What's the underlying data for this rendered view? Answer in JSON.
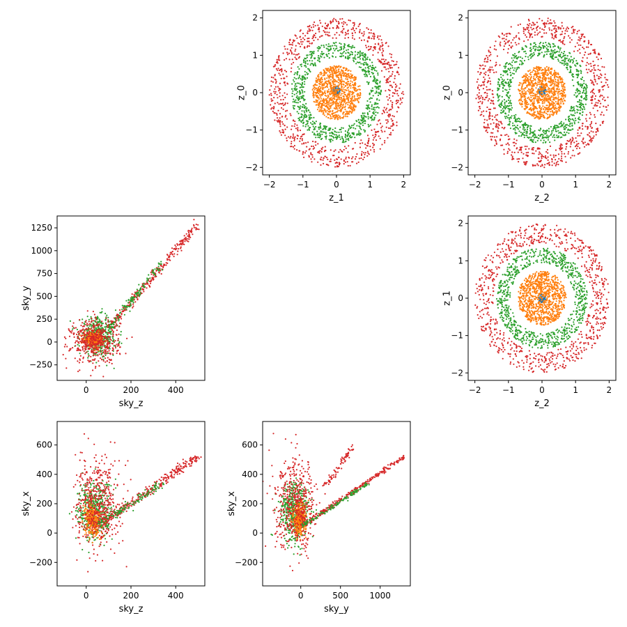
{
  "figure": {
    "series_colors": [
      "#1f77b4",
      "#ff7f0e",
      "#2ca02c",
      "#d62728"
    ]
  },
  "chart_data": [
    {
      "type": "scatter",
      "panel": "row1-col2",
      "xlabel": "z_1",
      "ylabel": "z_0",
      "xlim": [
        -2.2,
        2.2
      ],
      "ylim": [
        -2.2,
        2.2
      ],
      "xticks": [
        -2,
        -1,
        0,
        1,
        2
      ],
      "yticks": [
        -2,
        -1,
        0,
        1,
        2
      ],
      "grid": false,
      "series": [
        {
          "color": "#1f77b4",
          "shape": "ring",
          "count": 60,
          "center": [
            0.0,
            0.05
          ],
          "radius": [
            0.0,
            0.12
          ],
          "values": []
        },
        {
          "color": "#ff7f0e",
          "shape": "ring",
          "count": 900,
          "center": [
            0.0,
            0.0
          ],
          "radius": [
            0.0,
            0.72
          ],
          "values": []
        },
        {
          "color": "#2ca02c",
          "shape": "ring",
          "count": 800,
          "center": [
            0.0,
            0.0
          ],
          "radius": [
            0.95,
            1.35
          ],
          "values": []
        },
        {
          "color": "#d62728",
          "shape": "ring",
          "count": 800,
          "center": [
            0.0,
            0.0
          ],
          "radius": [
            1.45,
            2.0
          ],
          "values": []
        }
      ]
    },
    {
      "type": "scatter",
      "panel": "row1-col3",
      "xlabel": "z_2",
      "ylabel": "z_0",
      "xlim": [
        -2.2,
        2.2
      ],
      "ylim": [
        -2.2,
        2.2
      ],
      "xticks": [
        -2,
        -1,
        0,
        1,
        2
      ],
      "yticks": [
        -2,
        -1,
        0,
        1,
        2
      ],
      "grid": false,
      "series": [
        {
          "color": "#1f77b4",
          "shape": "ring",
          "count": 60,
          "center": [
            0.0,
            0.05
          ],
          "radius": [
            0.0,
            0.12
          ],
          "values": []
        },
        {
          "color": "#ff7f0e",
          "shape": "ring",
          "count": 900,
          "center": [
            0.0,
            0.0
          ],
          "radius": [
            0.0,
            0.72
          ],
          "values": []
        },
        {
          "color": "#2ca02c",
          "shape": "ring",
          "count": 800,
          "center": [
            0.0,
            0.0
          ],
          "radius": [
            0.95,
            1.35
          ],
          "values": []
        },
        {
          "color": "#d62728",
          "shape": "ring",
          "count": 800,
          "center": [
            0.0,
            0.0
          ],
          "radius": [
            1.45,
            2.0
          ],
          "values": []
        }
      ]
    },
    {
      "type": "scatter",
      "panel": "row2-col1",
      "xlabel": "sky_z",
      "ylabel": "sky_y",
      "xlim": [
        -130,
        530
      ],
      "ylim": [
        -420,
        1380
      ],
      "xticks": [
        0,
        200,
        400
      ],
      "yticks": [
        -250,
        0,
        250,
        500,
        750,
        1000,
        1250
      ],
      "grid": false,
      "series": [
        {
          "color": "#2ca02c",
          "shape": "blob",
          "count": 450,
          "center": [
            55,
            60
          ],
          "spread": [
            70,
            170
          ],
          "values": []
        },
        {
          "color": "#ff7f0e",
          "shape": "blob",
          "count": 350,
          "center": [
            35,
            30
          ],
          "spread": [
            35,
            60
          ],
          "values": []
        },
        {
          "color": "#d62728",
          "shape": "blob",
          "count": 500,
          "center": [
            40,
            10
          ],
          "spread": [
            90,
            200
          ],
          "values": []
        },
        {
          "color": "#d62728",
          "shape": "line",
          "count": 300,
          "from": [
            100,
            150
          ],
          "to": [
            500,
            1300
          ],
          "jitter": [
            8,
            25
          ],
          "values": []
        },
        {
          "color": "#2ca02c",
          "shape": "line",
          "count": 120,
          "from": [
            100,
            150
          ],
          "to": [
            340,
            860
          ],
          "jitter": [
            8,
            25
          ],
          "values": []
        }
      ]
    },
    {
      "type": "scatter",
      "panel": "row2-col3",
      "xlabel": "z_2",
      "ylabel": "z_1",
      "xlim": [
        -2.2,
        2.2
      ],
      "ylim": [
        -2.2,
        2.2
      ],
      "xticks": [
        -2,
        -1,
        0,
        1,
        2
      ],
      "yticks": [
        -2,
        -1,
        0,
        1,
        2
      ],
      "grid": false,
      "series": [
        {
          "color": "#1f77b4",
          "shape": "ring",
          "count": 60,
          "center": [
            0.0,
            0.0
          ],
          "radius": [
            0.0,
            0.12
          ],
          "values": []
        },
        {
          "color": "#ff7f0e",
          "shape": "ring",
          "count": 900,
          "center": [
            0.0,
            0.0
          ],
          "radius": [
            0.0,
            0.72
          ],
          "values": []
        },
        {
          "color": "#2ca02c",
          "shape": "ring",
          "count": 800,
          "center": [
            0.0,
            0.0
          ],
          "radius": [
            0.95,
            1.35
          ],
          "values": []
        },
        {
          "color": "#d62728",
          "shape": "ring",
          "count": 800,
          "center": [
            0.0,
            0.0
          ],
          "radius": [
            1.45,
            2.0
          ],
          "values": []
        }
      ]
    },
    {
      "type": "scatter",
      "panel": "row3-col1",
      "xlabel": "sky_z",
      "ylabel": "sky_x",
      "xlim": [
        -130,
        530
      ],
      "ylim": [
        -360,
        760
      ],
      "xticks": [
        0,
        200,
        400
      ],
      "yticks": [
        -200,
        0,
        200,
        400,
        600
      ],
      "grid": false,
      "series": [
        {
          "color": "#2ca02c",
          "shape": "blob",
          "count": 450,
          "center": [
            40,
            150
          ],
          "spread": [
            65,
            170
          ],
          "values": []
        },
        {
          "color": "#ff7f0e",
          "shape": "blob",
          "count": 350,
          "center": [
            30,
            90
          ],
          "spread": [
            30,
            90
          ],
          "values": []
        },
        {
          "color": "#d62728",
          "shape": "blob",
          "count": 500,
          "center": [
            50,
            200
          ],
          "spread": [
            80,
            250
          ],
          "values": []
        },
        {
          "color": "#d62728",
          "shape": "line",
          "count": 300,
          "from": [
            60,
            60
          ],
          "to": [
            500,
            520
          ],
          "jitter": [
            8,
            15
          ],
          "values": []
        },
        {
          "color": "#2ca02c",
          "shape": "line",
          "count": 120,
          "from": [
            60,
            60
          ],
          "to": [
            340,
            340
          ],
          "jitter": [
            8,
            15
          ],
          "values": []
        }
      ]
    },
    {
      "type": "scatter",
      "panel": "row3-col2",
      "xlabel": "sky_y",
      "ylabel": "sky_x",
      "xlim": [
        -480,
        1380
      ],
      "ylim": [
        -360,
        760
      ],
      "xticks": [
        0,
        500,
        1000
      ],
      "yticks": [
        -200,
        0,
        200,
        400,
        600
      ],
      "grid": false,
      "series": [
        {
          "color": "#2ca02c",
          "shape": "blob",
          "count": 450,
          "center": [
            -80,
            150
          ],
          "spread": [
            150,
            170
          ],
          "values": []
        },
        {
          "color": "#ff7f0e",
          "shape": "blob",
          "count": 350,
          "center": [
            -20,
            90
          ],
          "spread": [
            70,
            90
          ],
          "values": []
        },
        {
          "color": "#d62728",
          "shape": "blob",
          "count": 500,
          "center": [
            -60,
            200
          ],
          "spread": [
            220,
            250
          ],
          "values": []
        },
        {
          "color": "#d62728",
          "shape": "line",
          "count": 300,
          "from": [
            0,
            40
          ],
          "to": [
            1300,
            520
          ],
          "jitter": [
            15,
            8
          ],
          "values": []
        },
        {
          "color": "#d62728",
          "shape": "line",
          "count": 80,
          "from": [
            300,
            320
          ],
          "to": [
            650,
            580
          ],
          "jitter": [
            15,
            15
          ],
          "values": []
        },
        {
          "color": "#2ca02c",
          "shape": "line",
          "count": 120,
          "from": [
            0,
            40
          ],
          "to": [
            860,
            340
          ],
          "jitter": [
            15,
            8
          ],
          "values": []
        }
      ]
    }
  ]
}
